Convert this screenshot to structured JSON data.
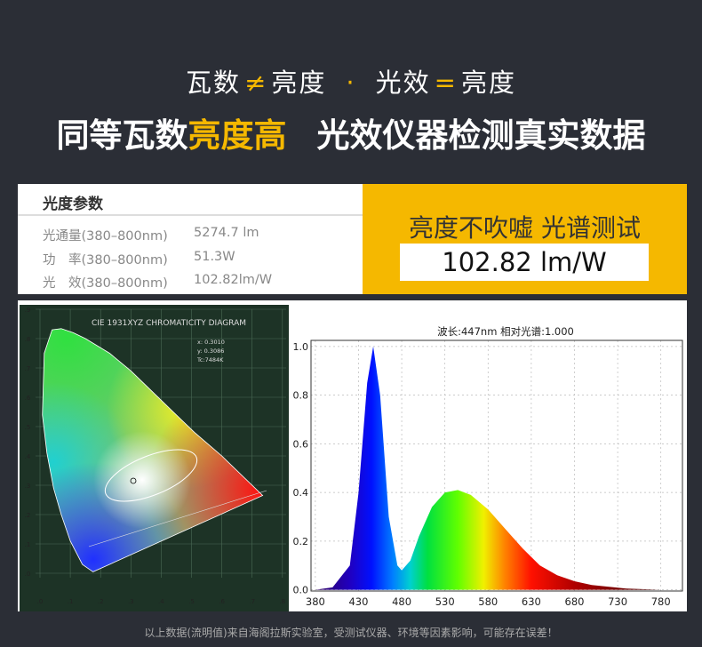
{
  "header": {
    "line1": [
      "瓦数",
      "≠",
      "亮度",
      "·",
      "光效",
      "=",
      "亮度"
    ],
    "title": [
      "同等瓦数",
      "亮度高",
      "光效仪器检测真实数据"
    ]
  },
  "params": {
    "heading": "光度参数",
    "rows": [
      [
        "光通量(380–800nm)",
        "5274.7 lm"
      ],
      [
        "功　率(380–800nm)",
        "51.3W"
      ],
      [
        "光　效(380–800nm)",
        "102.82lm/W"
      ]
    ]
  },
  "badge": {
    "title": "亮度不吹嘘 光谱测试",
    "value": "102.82 lm/W"
  },
  "cie": {
    "title": "CIE 1931XYZ CHROMATICITY DIAGRAM",
    "readout": [
      "x: 0.3010",
      "y: 0.3086",
      "Tc:7484K"
    ],
    "xticks": [
      ".0",
      ".1",
      ".2",
      ".3",
      ".4",
      ".5",
      ".6",
      ".7",
      ".8"
    ],
    "yticks": [
      ".9",
      ".8",
      ".7",
      ".6",
      ".5",
      ".4",
      ".3",
      ".2",
      ".1",
      ".0"
    ]
  },
  "spectrum": {
    "type": "area",
    "caption": "波长:447nm  相对光谱:1.000",
    "x": [
      380,
      400,
      420,
      430,
      440,
      447,
      455,
      465,
      475,
      480,
      490,
      500,
      515,
      530,
      545,
      560,
      580,
      600,
      620,
      640,
      660,
      680,
      700,
      740,
      780
    ],
    "values": [
      0,
      0.01,
      0.1,
      0.4,
      0.85,
      1.0,
      0.8,
      0.3,
      0.1,
      0.08,
      0.12,
      0.22,
      0.34,
      0.4,
      0.41,
      0.39,
      0.33,
      0.25,
      0.17,
      0.1,
      0.06,
      0.035,
      0.02,
      0.005,
      0
    ],
    "xlim": [
      375,
      805
    ],
    "ylim": [
      -0.005,
      1.025
    ],
    "xticks": [
      380,
      430,
      480,
      530,
      580,
      630,
      680,
      730,
      780
    ],
    "yticks": [
      {
        "value": 0,
        "label": "0.0"
      },
      0.2,
      0.4,
      0.6,
      0.8,
      {
        "value": 1,
        "label": "1.0"
      }
    ],
    "grid": true
  },
  "footer": "以上数据(流明值)来自海阁拉斯实验室，受测试仪器、环境等因素影响，可能存在误差！"
}
